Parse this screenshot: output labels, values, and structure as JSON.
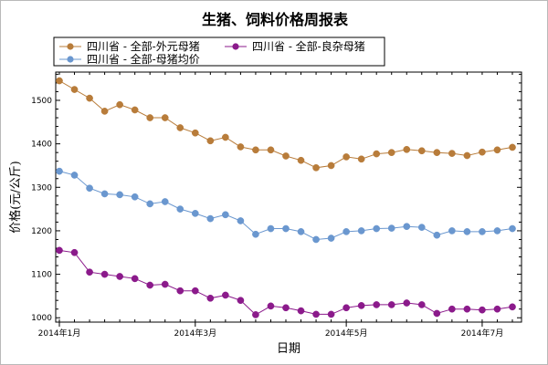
{
  "chart_data": {
    "type": "line",
    "title": "生猪、饲料价格周报表",
    "xlabel": "日期",
    "ylabel": "价格(元/公斤)",
    "ylim": [
      990,
      1565
    ],
    "yticks": [
      1000,
      1100,
      1200,
      1300,
      1400,
      1500
    ],
    "xticks": [
      {
        "index": 0,
        "label": "2014年1月"
      },
      {
        "index": 9,
        "label": "2014年3月"
      },
      {
        "index": 19,
        "label": "2014年5月"
      },
      {
        "index": 28,
        "label": "2014年7月"
      }
    ],
    "grid": false,
    "legend_position": "top",
    "series": [
      {
        "name": "四川省 - 全部-外元母猪",
        "color": "#b87c3a",
        "values": [
          1545,
          1525,
          1505,
          1475,
          1490,
          1478,
          1460,
          1460,
          1437,
          1425,
          1407,
          1415,
          1393,
          1386,
          1386,
          1372,
          1362,
          1345,
          1350,
          1370,
          1365,
          1377,
          1380,
          1387,
          1384,
          1380,
          1378,
          1373,
          1381,
          1386,
          1392
        ]
      },
      {
        "name": "四川省 - 全部-良杂母猪",
        "color": "#8b1a8b",
        "values": [
          1155,
          1150,
          1105,
          1100,
          1095,
          1090,
          1075,
          1077,
          1062,
          1062,
          1045,
          1052,
          1040,
          1007,
          1027,
          1023,
          1016,
          1008,
          1008,
          1023,
          1028,
          1030,
          1030,
          1034,
          1030,
          1010,
          1020,
          1020,
          1018,
          1020,
          1025
        ]
      },
      {
        "name": "四川省 - 全部-母猪均价",
        "color": "#6a97cf",
        "values": [
          1337,
          1328,
          1298,
          1285,
          1283,
          1278,
          1262,
          1267,
          1250,
          1240,
          1228,
          1237,
          1223,
          1192,
          1205,
          1205,
          1198,
          1180,
          1183,
          1198,
          1200,
          1205,
          1206,
          1210,
          1208,
          1190,
          1200,
          1198,
          1198,
          1200,
          1205
        ]
      }
    ]
  }
}
